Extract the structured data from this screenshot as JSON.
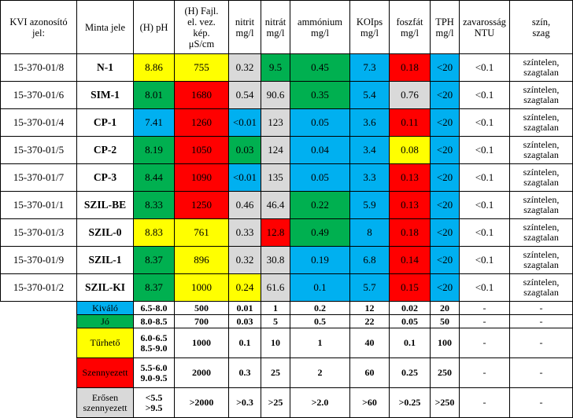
{
  "colors": {
    "kivalo": "#00b0f0",
    "jo": "#00b050",
    "turheto": "#ffff00",
    "szennyezett": "#ff0000",
    "erosen": "#d9d9d9"
  },
  "headers": {
    "kvi": "KVI azonosító\njel:",
    "minta": "Minta jele",
    "ph": "(H) pH",
    "fajl": "(H) Fajl.\nel. vez.\nkép.\nμS/cm",
    "nitrit": "nitrit\nmg/l",
    "nitrat": "nitrát\nmg/l",
    "ammonium": "ammónium\nmg/l",
    "koips": "KOIps\nmg/l",
    "foszfat": "foszfát\nmg/l",
    "tph": "TPH\nmg/l",
    "zavarossag": "zavarosság\nNTU",
    "szin": "szín,\nszag"
  },
  "rows": [
    {
      "kvi": "15-370-01/8",
      "minta": "N-1",
      "ph": "8.86",
      "fajl": "755",
      "nitrit": "0.32",
      "nitrat": "9.5",
      "ammonium": "0.45",
      "koips": "7.3",
      "foszfat": "0.18",
      "tph": "<20",
      "zavarossag": "<0.1",
      "szin": "színtelen,\nszagtalan"
    },
    {
      "kvi": "15-370-01/6",
      "minta": "SIM-1",
      "ph": "8.01",
      "fajl": "1680",
      "nitrit": "0.54",
      "nitrat": "90.6",
      "ammonium": "0.35",
      "koips": "5.4",
      "foszfat": "0.76",
      "tph": "<20",
      "zavarossag": "<0.1",
      "szin": "színtelen,\nszagtalan"
    },
    {
      "kvi": "15-370-01/4",
      "minta": "CP-1",
      "ph": "7.41",
      "fajl": "1260",
      "nitrit": "<0.01",
      "nitrat": "123",
      "ammonium": "0.05",
      "koips": "3.6",
      "foszfat": "0.11",
      "tph": "<20",
      "zavarossag": "<0.1",
      "szin": "színtelen,\nszagtalan"
    },
    {
      "kvi": "15-370-01/5",
      "minta": "CP-2",
      "ph": "8.19",
      "fajl": "1050",
      "nitrit": "0.03",
      "nitrat": "124",
      "ammonium": "0.04",
      "koips": "3.4",
      "foszfat": "0.08",
      "tph": "<20",
      "zavarossag": "<0.1",
      "szin": "színtelen,\nszagtalan"
    },
    {
      "kvi": "15-370-01/7",
      "minta": "CP-3",
      "ph": "8.44",
      "fajl": "1090",
      "nitrit": "<0.01",
      "nitrat": "135",
      "ammonium": "0.05",
      "koips": "3.3",
      "foszfat": "0.13",
      "tph": "<20",
      "zavarossag": "<0.1",
      "szin": "színtelen,\nszagtalan"
    },
    {
      "kvi": "15-370-01/1",
      "minta": "SZIL-BE",
      "ph": "8.33",
      "fajl": "1250",
      "nitrit": "0.46",
      "nitrat": "46.4",
      "ammonium": "0.22",
      "koips": "5.9",
      "foszfat": "0.13",
      "tph": "<20",
      "zavarossag": "<0.1",
      "szin": "színtelen,\nszagtalan"
    },
    {
      "kvi": "15-370-01/3",
      "minta": "SZIL-0",
      "ph": "8.83",
      "fajl": "761",
      "nitrit": "0.33",
      "nitrat": "12.8",
      "ammonium": "0.49",
      "koips": "8",
      "foszfat": "0.18",
      "tph": "<20",
      "zavarossag": "<0.1",
      "szin": "színtelen,\nszagtalan"
    },
    {
      "kvi": "15-370-01/9",
      "minta": "SZIL-1",
      "ph": "8.37",
      "fajl": "896",
      "nitrit": "0.32",
      "nitrat": "30.8",
      "ammonium": "0.19",
      "koips": "6.8",
      "foszfat": "0.14",
      "tph": "<20",
      "zavarossag": "<0.1",
      "szin": "színtelen,\nszagtalan"
    },
    {
      "kvi": "15-370-01/2",
      "minta": "SZIL-KI",
      "ph": "8.37",
      "fajl": "1000",
      "nitrit": "0.24",
      "nitrat": "61.6",
      "ammonium": "0.1",
      "koips": "5.7",
      "foszfat": "0.15",
      "tph": "<20",
      "zavarossag": "<0.1",
      "szin": "színtelen,\nszagtalan"
    }
  ],
  "legend": [
    {
      "label": "Kiváló",
      "ph": "6.5-8.0",
      "fajl": "500",
      "nitrit": "0.01",
      "nitrat": "1",
      "ammonium": "0.2",
      "koips": "12",
      "foszfat": "0.02",
      "tph": "20",
      "zavarossag": "-",
      "szin": "-"
    },
    {
      "label": "Jó",
      "ph": "8.0-8.5",
      "fajl": "700",
      "nitrit": "0.03",
      "nitrat": "5",
      "ammonium": "0.5",
      "koips": "22",
      "foszfat": "0.05",
      "tph": "50",
      "zavarossag": "-",
      "szin": "-"
    },
    {
      "label": "Tűrhető",
      "ph": "6.0-6.5\n8.5-9.0",
      "fajl": "1000",
      "nitrit": "0.1",
      "nitrat": "10",
      "ammonium": "1",
      "koips": "40",
      "foszfat": "0.1",
      "tph": "100",
      "zavarossag": "-",
      "szin": "-"
    },
    {
      "label": "Szennyezett",
      "ph": "5.5-6.0\n9.0-9.5",
      "fajl": "2000",
      "nitrit": "0.3",
      "nitrat": "25",
      "ammonium": "2",
      "koips": "60",
      "foszfat": "0.25",
      "tph": "250",
      "zavarossag": "-",
      "szin": "-"
    },
    {
      "label": "Erősen\nszennyezett",
      "ph": "<5.5\n>9.5",
      "fajl": ">2000",
      "nitrit": ">0.3",
      "nitrat": ">25",
      "ammonium": ">2.0",
      "koips": ">60",
      "foszfat": ">0.25",
      "tph": ">250",
      "zavarossag": "-",
      "szin": "-"
    }
  ]
}
